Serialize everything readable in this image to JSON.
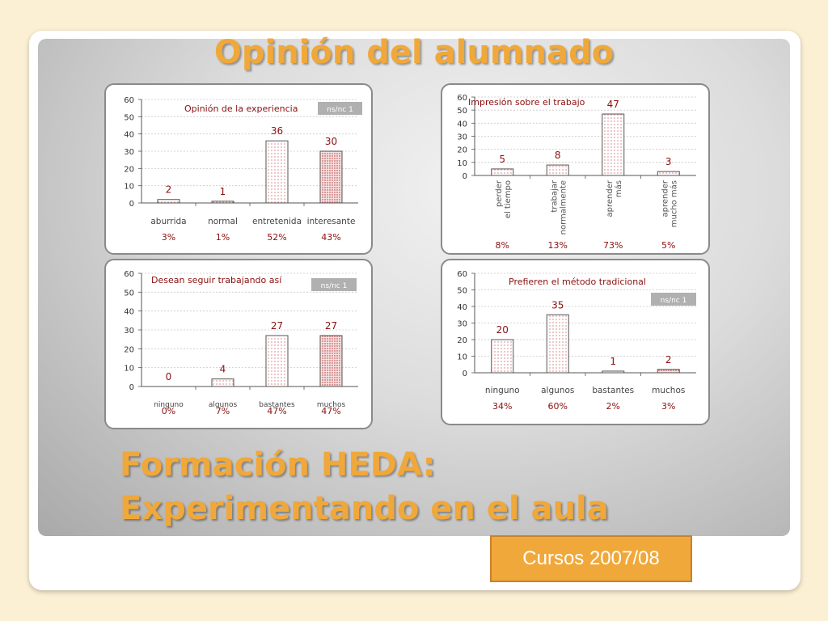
{
  "slide": {
    "title": "Opinión del alumnado",
    "subtitle_line1": "Formación HEDA:",
    "subtitle_line2": "Experimentando en el aula",
    "course": "Cursos 2007/08",
    "title_color": "#f0a83a"
  },
  "chart_data": [
    {
      "type": "bar",
      "title": "Opinión de la experiencia",
      "badge": "ns/nc 1",
      "categories": [
        "aburrida",
        "normal",
        "entretenida",
        "interesante"
      ],
      "values": [
        2,
        1,
        36,
        30
      ],
      "percentages": [
        "3%",
        "1%",
        "52%",
        "43%"
      ],
      "ylim": [
        0,
        60
      ],
      "yticks": [
        0,
        10,
        20,
        30,
        40,
        50,
        60
      ],
      "grid": true
    },
    {
      "type": "bar",
      "title": "Impresión sobre el trabajo",
      "badge": "",
      "categories": [
        "perder el tiempo",
        "trabajar normalmente",
        "aprender más",
        "aprender mucho más"
      ],
      "values": [
        5,
        8,
        47,
        3
      ],
      "percentages": [
        "8%",
        "13%",
        "73%",
        "5%"
      ],
      "ylim": [
        0,
        60
      ],
      "yticks": [
        0,
        10,
        20,
        30,
        40,
        50,
        60
      ],
      "grid": true
    },
    {
      "type": "bar",
      "title": "Desean seguir trabajando así",
      "badge": "ns/nc 1",
      "categories": [
        "ninguno",
        "algunos",
        "bastantes",
        "muchos"
      ],
      "values": [
        0,
        4,
        27,
        27
      ],
      "percentages": [
        "0%",
        "7%",
        "47%",
        "47%"
      ],
      "ylim": [
        0,
        60
      ],
      "yticks": [
        0,
        10,
        20,
        30,
        40,
        50,
        60
      ],
      "grid": true
    },
    {
      "type": "bar",
      "title": "Prefieren el método tradicional",
      "badge": "ns/nc 1",
      "categories": [
        "ninguno",
        "algunos",
        "bastantes",
        "muchos"
      ],
      "values": [
        20,
        35,
        1,
        2
      ],
      "percentages": [
        "34%",
        "60%",
        "2%",
        "3%"
      ],
      "ylim": [
        0,
        60
      ],
      "yticks": [
        0,
        10,
        20,
        30,
        40,
        50,
        60
      ],
      "grid": true
    }
  ]
}
